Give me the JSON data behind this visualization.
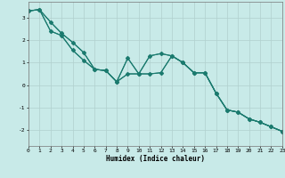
{
  "xlabel": "Humidex (Indice chaleur)",
  "xlim": [
    0,
    23
  ],
  "ylim": [
    -2.7,
    3.7
  ],
  "xticks": [
    0,
    1,
    2,
    3,
    4,
    5,
    6,
    7,
    8,
    9,
    10,
    11,
    12,
    13,
    14,
    15,
    16,
    17,
    18,
    19,
    20,
    21,
    22,
    23
  ],
  "yticks": [
    -2,
    -1,
    0,
    1,
    2,
    3
  ],
  "background_color": "#c8eae8",
  "grid_color": "#b0d0ce",
  "line_color": "#1a7a6e",
  "line1_y": [
    3.3,
    3.35,
    2.8,
    2.3,
    1.9,
    1.45,
    0.7,
    0.65,
    0.15,
    1.2,
    0.5,
    1.3,
    1.4,
    1.3,
    1.0,
    0.55,
    0.55,
    -0.35,
    -1.1,
    -1.2,
    -1.5,
    -1.65,
    -1.85,
    -2.05
  ],
  "line2_y": [
    3.3,
    3.35,
    2.4,
    2.2,
    1.55,
    1.1,
    0.7,
    0.65,
    0.15,
    1.2,
    0.5,
    1.3,
    1.4,
    1.3,
    1.0,
    0.55,
    0.55,
    -0.35,
    -1.1,
    -1.2,
    -1.5,
    -1.65,
    -1.85,
    -2.05
  ],
  "line3_y": [
    3.3,
    3.35,
    2.8,
    2.3,
    1.9,
    1.45,
    0.7,
    0.65,
    0.15,
    0.5,
    0.5,
    0.5,
    0.55,
    1.3,
    1.0,
    0.55,
    0.55,
    -0.35,
    -1.1,
    -1.2,
    -1.5,
    -1.65,
    -1.85,
    -2.05
  ],
  "line4_y": [
    3.3,
    3.35,
    2.4,
    2.2,
    1.55,
    1.1,
    0.7,
    0.65,
    0.15,
    0.5,
    0.5,
    0.5,
    0.55,
    1.3,
    1.0,
    0.55,
    0.55,
    -0.35,
    -1.1,
    -1.2,
    -1.5,
    -1.65,
    -1.85,
    -2.05
  ],
  "marker_size": 2.5,
  "linewidth": 0.8,
  "axis_fontsize": 5.5,
  "tick_fontsize": 4.5
}
